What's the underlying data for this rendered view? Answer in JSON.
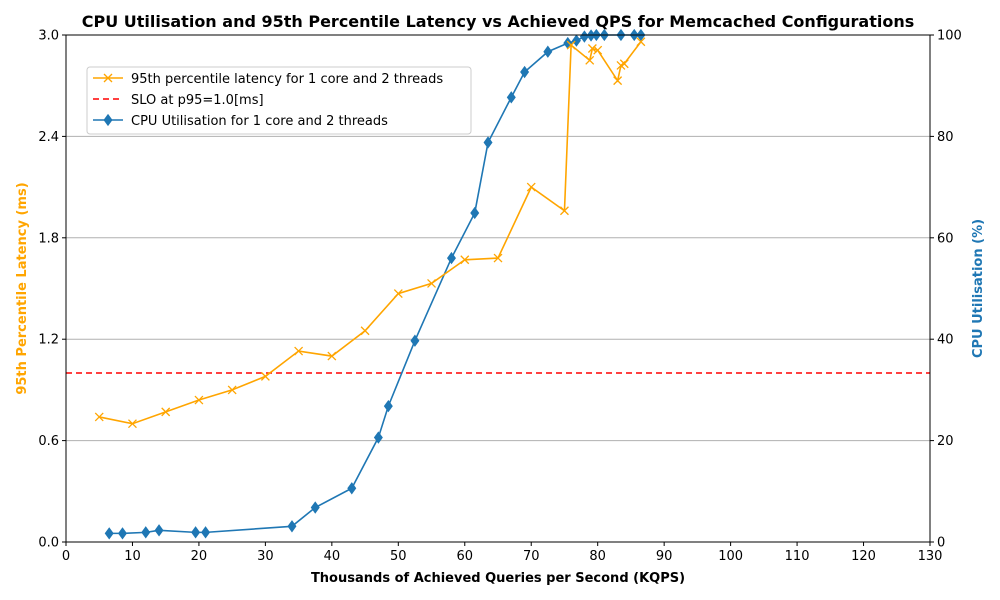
{
  "chart_data": {
    "type": "line",
    "title": "CPU Utilisation and 95th Percentile Latency vs Achieved QPS for Memcached Configurations",
    "xlabel": "Thousands of Achieved Queries per Second (KQPS)",
    "ylabel_left": "95th Percentile Latency (ms)",
    "ylabel_right": "CPU Utilisation (%)",
    "xlim": [
      0,
      130
    ],
    "ylim_left": [
      0,
      3.0
    ],
    "ylim_right": [
      0,
      100
    ],
    "x_ticks": [
      "0",
      "10",
      "20",
      "30",
      "40",
      "50",
      "60",
      "70",
      "80",
      "90",
      "100",
      "110",
      "120",
      "130"
    ],
    "y_left_ticks": [
      "0.0",
      "0.6",
      "1.2",
      "1.8",
      "2.4",
      "3.0"
    ],
    "y_right_ticks": [
      "0",
      "20",
      "40",
      "60",
      "80",
      "100"
    ],
    "grid": "horizontal",
    "legend_position": "top-left",
    "colors": {
      "latency": "#ffa500",
      "slo": "#ff0000",
      "cpu": "#1f77b4",
      "grid": "#b0b0b0"
    },
    "series": [
      {
        "name": "95th percentile latency for 1 core and 2 threads",
        "axis": "left",
        "marker": "x",
        "x": [
          5,
          10,
          15,
          20,
          25,
          30,
          35,
          40,
          45,
          50,
          55,
          60,
          65,
          70,
          75,
          76,
          78.8,
          79.2,
          80,
          83,
          83.5,
          84,
          86.5
        ],
        "y": [
          0.74,
          0.7,
          0.77,
          0.84,
          0.9,
          0.98,
          1.13,
          1.1,
          1.25,
          1.47,
          1.53,
          1.67,
          1.68,
          2.1,
          1.96,
          2.94,
          2.85,
          2.92,
          2.91,
          2.73,
          2.82,
          2.83,
          2.96
        ]
      },
      {
        "name": "SLO at p95=1.0[ms]",
        "axis": "left",
        "style": "dashed",
        "value": 1.0
      },
      {
        "name": "CPU Utilisation for 1 core and 2 threads",
        "axis": "right",
        "marker": "diamond",
        "x": [
          6.5,
          8.5,
          12,
          14,
          19.5,
          21,
          34,
          37.5,
          43,
          47,
          48.5,
          52.5,
          58,
          61.5,
          63.5,
          67,
          69,
          72.5,
          75.5,
          76.8,
          78,
          79,
          79.8,
          81,
          83.5,
          85.5,
          86.5
        ],
        "y": [
          1.7,
          1.7,
          1.9,
          2.3,
          1.9,
          1.9,
          3.1,
          6.8,
          10.6,
          20.6,
          26.8,
          39.7,
          56.0,
          64.9,
          78.8,
          87.7,
          92.7,
          96.7,
          98.4,
          98.9,
          99.7,
          99.9,
          100,
          100,
          100,
          100,
          100
        ]
      }
    ]
  }
}
